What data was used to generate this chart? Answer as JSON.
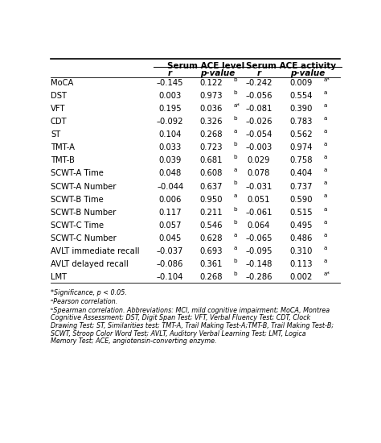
{
  "title_col1": "Serum ACE level",
  "title_col2": "Serum ACE activity",
  "rows": [
    {
      "label": "MoCA",
      "r1": "–0.145",
      "p1": "0.122",
      "p1_sup": "b",
      "p1_star": false,
      "r2": "–0.242",
      "p2": "0.009",
      "p2_sup": "a",
      "p2_star": true
    },
    {
      "label": "DST",
      "r1": "0.003",
      "p1": "0.973",
      "p1_sup": "b",
      "p1_star": false,
      "r2": "–0.056",
      "p2": "0.554",
      "p2_sup": "a",
      "p2_star": false
    },
    {
      "label": "VFT",
      "r1": "0.195",
      "p1": "0.036",
      "p1_sup": "a",
      "p1_star": true,
      "r2": "–0.081",
      "p2": "0.390",
      "p2_sup": "a",
      "p2_star": false
    },
    {
      "label": "CDT",
      "r1": "–0.092",
      "p1": "0.326",
      "p1_sup": "b",
      "p1_star": false,
      "r2": "–0.026",
      "p2": "0.783",
      "p2_sup": "a",
      "p2_star": false
    },
    {
      "label": "ST",
      "r1": "0.104",
      "p1": "0.268",
      "p1_sup": "a",
      "p1_star": false,
      "r2": "–0.054",
      "p2": "0.562",
      "p2_sup": "a",
      "p2_star": false
    },
    {
      "label": "TMT-A",
      "r1": "0.033",
      "p1": "0.723",
      "p1_sup": "b",
      "p1_star": false,
      "r2": "–0.003",
      "p2": "0.974",
      "p2_sup": "a",
      "p2_star": false
    },
    {
      "label": "TMT-B",
      "r1": "0.039",
      "p1": "0.681",
      "p1_sup": "b",
      "p1_star": false,
      "r2": "0.029",
      "p2": "0.758",
      "p2_sup": "a",
      "p2_star": false
    },
    {
      "label": "SCWT-A Time",
      "r1": "0.048",
      "p1": "0.608",
      "p1_sup": "a",
      "p1_star": false,
      "r2": "0.078",
      "p2": "0.404",
      "p2_sup": "a",
      "p2_star": false
    },
    {
      "label": "SCWT-A Number",
      "r1": "–0.044",
      "p1": "0.637",
      "p1_sup": "b",
      "p1_star": false,
      "r2": "–0.031",
      "p2": "0.737",
      "p2_sup": "a",
      "p2_star": false
    },
    {
      "label": "SCWT-B Time",
      "r1": "0.006",
      "p1": "0.950",
      "p1_sup": "a",
      "p1_star": false,
      "r2": "0.051",
      "p2": "0.590",
      "p2_sup": "a",
      "p2_star": false
    },
    {
      "label": "SCWT-B Number",
      "r1": "0.117",
      "p1": "0.211",
      "p1_sup": "b",
      "p1_star": false,
      "r2": "–0.061",
      "p2": "0.515",
      "p2_sup": "a",
      "p2_star": false
    },
    {
      "label": "SCWT-C Time",
      "r1": "0.057",
      "p1": "0.546",
      "p1_sup": "b",
      "p1_star": false,
      "r2": "0.064",
      "p2": "0.495",
      "p2_sup": "a",
      "p2_star": false
    },
    {
      "label": "SCWT-C Number",
      "r1": "0.045",
      "p1": "0.628",
      "p1_sup": "a",
      "p1_star": false,
      "r2": "–0.065",
      "p2": "0.486",
      "p2_sup": "a",
      "p2_star": false
    },
    {
      "label": "AVLT immediate recall",
      "r1": "–0.037",
      "p1": "0.693",
      "p1_sup": "a",
      "p1_star": false,
      "r2": "–0.095",
      "p2": "0.310",
      "p2_sup": "a",
      "p2_star": false
    },
    {
      "label": "AVLT delayed recall",
      "r1": "–0.086",
      "p1": "0.361",
      "p1_sup": "b",
      "p1_star": false,
      "r2": "–0.148",
      "p2": "0.113",
      "p2_sup": "a",
      "p2_star": false
    },
    {
      "label": "LMT",
      "r1": "–0.104",
      "p1": "0.268",
      "p1_sup": "b",
      "p1_star": false,
      "r2": "–0.286",
      "p2": "0.002",
      "p2_sup": "a",
      "p2_star": true
    }
  ],
  "bg_color": "#ffffff",
  "text_color": "#000000",
  "line_color": "#000000"
}
